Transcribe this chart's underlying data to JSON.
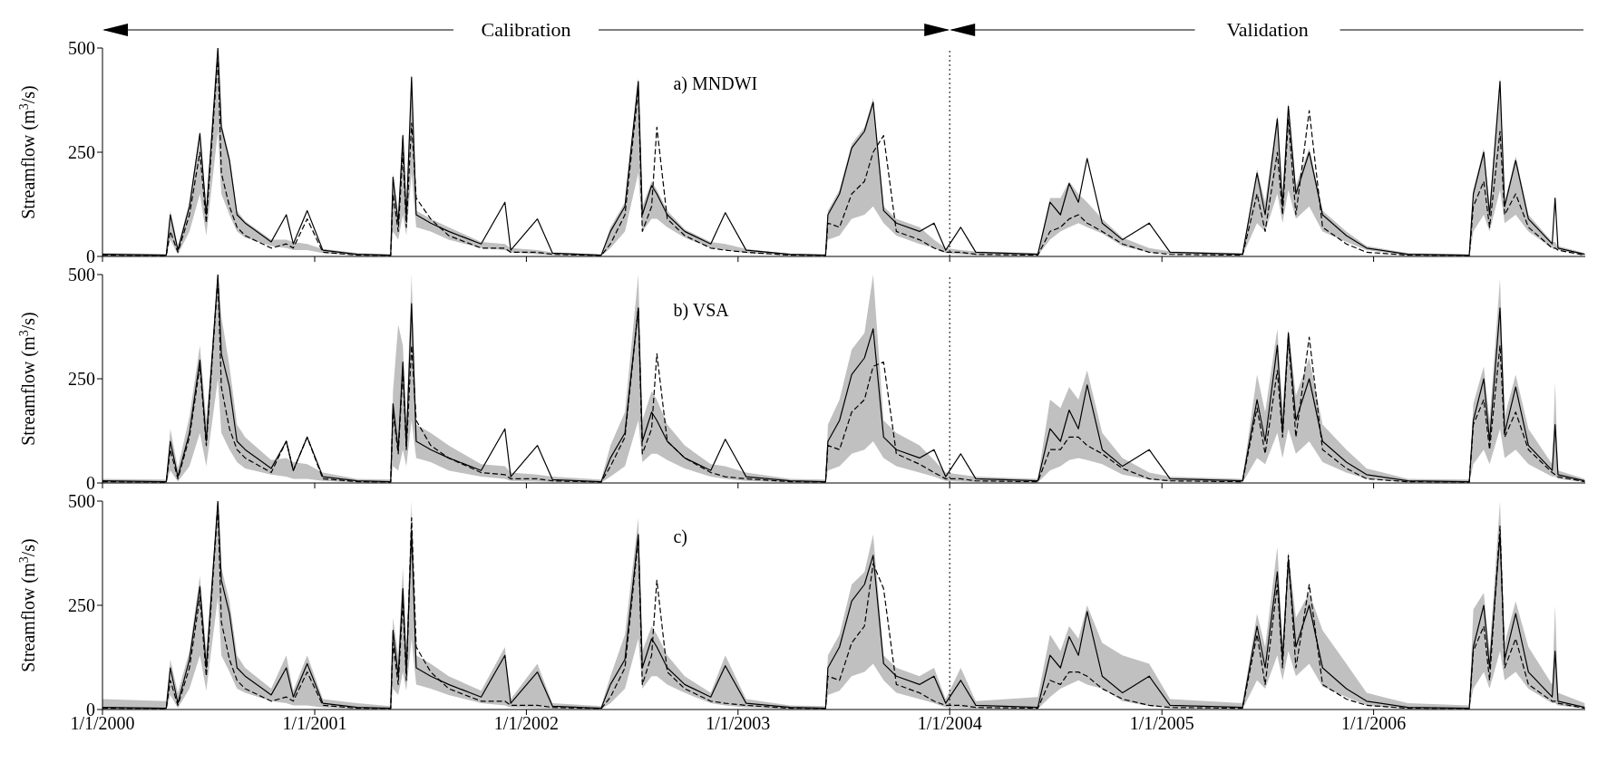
{
  "chart_data": [
    {
      "type": "line",
      "title": "a) MNDWI",
      "ylabel": "Streamflow (m$^{3}$/s)",
      "annotations": [
        "Calibration",
        "Validation"
      ],
      "tick_labels": "y",
      "xlim": [
        "2000-01-01",
        "2007-01-01"
      ],
      "xticks": [
        {
          "value": "2000-01-01",
          "label": null
        },
        {
          "value": "2001-01-01",
          "label": null
        },
        {
          "value": "2002-01-01",
          "label": null
        },
        {
          "value": "2003-01-01",
          "label": null
        },
        {
          "value": "2004-01-01",
          "label": null
        },
        {
          "value": "2005-01-01",
          "label": null
        },
        {
          "value": "2006-01-01",
          "label": null
        }
      ],
      "ylim": [
        0,
        500
      ],
      "yticks": [
        0,
        250,
        500
      ],
      "marker": "none",
      "ref_lines": [
        {
          "axis": "x",
          "value": "2004-01-01",
          "line_style": "dotted",
          "color": "#000000"
        }
      ],
      "x": [
        "2000-01-01",
        "2000-04-20",
        "2000-04-27",
        "2000-05-10",
        "2000-05-30",
        "2000-06-17",
        "2000-06-28",
        "2000-07-18",
        "2000-07-24",
        "2000-08-07",
        "2000-08-20",
        "2000-09-03",
        "2000-10-18",
        "2000-11-13",
        "2000-11-25",
        "2000-12-19",
        "2001-01-15",
        "2001-03-15",
        "2001-05-12",
        "2001-05-16",
        "2001-05-25",
        "2001-06-02",
        "2001-06-08",
        "2001-06-17",
        "2001-06-25",
        "2001-07-20",
        "2001-08-20",
        "2001-10-15",
        "2001-11-25",
        "2001-12-05",
        "2002-01-20",
        "2002-02-15",
        "2002-05-10",
        "2002-05-26",
        "2002-06-20",
        "2002-07-13",
        "2002-07-20",
        "2002-08-05",
        "2002-08-14",
        "2002-09-01",
        "2002-10-01",
        "2002-11-15",
        "2002-12-10",
        "2003-01-15",
        "2003-04-01",
        "2003-06-01",
        "2003-06-05",
        "2003-06-25",
        "2003-07-16",
        "2003-08-07",
        "2003-08-22",
        "2003-09-09",
        "2003-10-01",
        "2003-11-10",
        "2003-12-05",
        "2003-12-25",
        "2004-01-20",
        "2004-02-15",
        "2004-06-01",
        "2004-06-22",
        "2004-07-10",
        "2004-07-25",
        "2004-08-10",
        "2004-08-25",
        "2004-09-20",
        "2004-10-25",
        "2004-12-10",
        "2005-01-15",
        "2005-05-20",
        "2005-06-14",
        "2005-06-28",
        "2005-07-19",
        "2005-07-28",
        "2005-08-07",
        "2005-08-20",
        "2005-09-12",
        "2005-10-05",
        "2005-11-15",
        "2005-12-20",
        "2006-03-01",
        "2006-06-15",
        "2006-06-22",
        "2006-07-10",
        "2006-07-20",
        "2006-08-07",
        "2006-08-15",
        "2006-09-03",
        "2006-09-25",
        "2006-11-05",
        "2006-11-10",
        "2006-11-15",
        "2006-12-31"
      ],
      "series": [
        {
          "color": "#000000",
          "line_style": "solid",
          "values": [
            5,
            3,
            100,
            15,
            120,
            295,
            100,
            500,
            310,
            230,
            100,
            80,
            35,
            100,
            30,
            110,
            15,
            5,
            3,
            190,
            80,
            290,
            90,
            430,
            100,
            80,
            60,
            30,
            130,
            15,
            90,
            8,
            3,
            60,
            120,
            420,
            100,
            170,
            150,
            100,
            60,
            30,
            105,
            15,
            5,
            3,
            100,
            150,
            260,
            300,
            370,
            110,
            80,
            60,
            80,
            15,
            70,
            10,
            5,
            130,
            100,
            175,
            130,
            235,
            80,
            40,
            80,
            10,
            5,
            200,
            100,
            330,
            120,
            360,
            150,
            250,
            100,
            50,
            20,
            5,
            3,
            150,
            250,
            100,
            420,
            120,
            230,
            90,
            30,
            140,
            20,
            5
          ]
        },
        {
          "color": "#000000",
          "line_style": "dashed",
          "values": [
            3,
            2,
            60,
            10,
            100,
            250,
            80,
            480,
            200,
            120,
            70,
            50,
            20,
            30,
            20,
            90,
            10,
            3,
            2,
            150,
            60,
            250,
            70,
            320,
            140,
            90,
            50,
            20,
            20,
            10,
            10,
            5,
            2,
            30,
            100,
            400,
            60,
            120,
            310,
            90,
            50,
            20,
            15,
            10,
            3,
            2,
            80,
            70,
            150,
            180,
            250,
            290,
            60,
            40,
            20,
            10,
            10,
            5,
            3,
            60,
            70,
            90,
            100,
            80,
            60,
            30,
            10,
            5,
            3,
            150,
            60,
            250,
            100,
            330,
            100,
            350,
            70,
            30,
            10,
            3,
            2,
            120,
            180,
            70,
            300,
            100,
            150,
            70,
            20,
            20,
            15,
            3
          ],
          "lower": [
            0,
            0,
            40,
            5,
            60,
            150,
            50,
            300,
            150,
            100,
            60,
            45,
            25,
            20,
            15,
            15,
            8,
            2,
            1,
            60,
            40,
            100,
            50,
            200,
            70,
            60,
            40,
            20,
            15,
            10,
            5,
            3,
            1,
            20,
            60,
            200,
            60,
            90,
            90,
            70,
            45,
            20,
            15,
            8,
            2,
            1,
            40,
            50,
            90,
            100,
            120,
            80,
            50,
            30,
            20,
            8,
            5,
            3,
            2,
            40,
            60,
            70,
            80,
            70,
            55,
            25,
            10,
            5,
            2,
            80,
            60,
            150,
            80,
            160,
            90,
            120,
            60,
            35,
            15,
            2,
            1,
            60,
            100,
            60,
            160,
            80,
            100,
            60,
            20,
            20,
            15,
            3
          ],
          "upper": [
            8,
            6,
            110,
            25,
            130,
            300,
            120,
            500,
            320,
            240,
            110,
            85,
            40,
            40,
            35,
            30,
            18,
            8,
            5,
            200,
            100,
            300,
            110,
            440,
            110,
            90,
            70,
            35,
            30,
            20,
            15,
            10,
            5,
            70,
            130,
            430,
            120,
            180,
            160,
            110,
            65,
            35,
            30,
            18,
            6,
            5,
            110,
            160,
            270,
            310,
            380,
            120,
            90,
            70,
            40,
            20,
            15,
            12,
            8,
            140,
            140,
            180,
            150,
            130,
            90,
            45,
            20,
            12,
            8,
            210,
            130,
            340,
            140,
            370,
            170,
            260,
            110,
            60,
            25,
            8,
            5,
            160,
            260,
            120,
            430,
            130,
            240,
            100,
            35,
            35,
            25,
            8
          ]
        }
      ]
    },
    {
      "type": "line",
      "title": "b) VSA",
      "ylabel": "Streamflow (m$^{3}$/s)",
      "tick_labels": "y",
      "xlim": [
        "2000-01-01",
        "2007-01-01"
      ],
      "xticks": [
        {
          "value": "2000-01-01",
          "label": null
        },
        {
          "value": "2001-01-01",
          "label": null
        },
        {
          "value": "2002-01-01",
          "label": null
        },
        {
          "value": "2003-01-01",
          "label": null
        },
        {
          "value": "2004-01-01",
          "label": null
        },
        {
          "value": "2005-01-01",
          "label": null
        },
        {
          "value": "2006-01-01",
          "label": null
        }
      ],
      "ylim": [
        0,
        500
      ],
      "yticks": [
        0,
        250,
        500
      ],
      "marker": "none",
      "ref_lines": [
        {
          "axis": "x",
          "value": "2004-01-01",
          "line_style": "dotted",
          "color": "#000000"
        }
      ],
      "x": [
        "2000-01-01",
        "2000-04-20",
        "2000-04-27",
        "2000-05-10",
        "2000-05-30",
        "2000-06-17",
        "2000-06-28",
        "2000-07-18",
        "2000-07-24",
        "2000-08-07",
        "2000-08-20",
        "2000-09-03",
        "2000-10-18",
        "2000-11-13",
        "2000-11-25",
        "2000-12-19",
        "2001-01-15",
        "2001-03-15",
        "2001-05-12",
        "2001-05-16",
        "2001-05-25",
        "2001-06-02",
        "2001-06-08",
        "2001-06-17",
        "2001-06-25",
        "2001-07-20",
        "2001-08-20",
        "2001-10-15",
        "2001-11-25",
        "2001-12-05",
        "2002-01-20",
        "2002-02-15",
        "2002-05-10",
        "2002-05-26",
        "2002-06-20",
        "2002-07-13",
        "2002-07-20",
        "2002-08-05",
        "2002-08-14",
        "2002-09-01",
        "2002-10-01",
        "2002-11-15",
        "2002-12-10",
        "2003-01-15",
        "2003-04-01",
        "2003-06-01",
        "2003-06-05",
        "2003-06-25",
        "2003-07-16",
        "2003-08-07",
        "2003-08-22",
        "2003-09-09",
        "2003-10-01",
        "2003-11-10",
        "2003-12-05",
        "2003-12-25",
        "2004-01-20",
        "2004-02-15",
        "2004-06-01",
        "2004-06-22",
        "2004-07-10",
        "2004-07-25",
        "2004-08-10",
        "2004-08-25",
        "2004-09-20",
        "2004-10-25",
        "2004-12-10",
        "2005-01-15",
        "2005-05-20",
        "2005-06-14",
        "2005-06-28",
        "2005-07-19",
        "2005-07-28",
        "2005-08-07",
        "2005-08-20",
        "2005-09-12",
        "2005-10-05",
        "2005-11-15",
        "2005-12-20",
        "2006-03-01",
        "2006-06-15",
        "2006-06-22",
        "2006-07-10",
        "2006-07-20",
        "2006-08-07",
        "2006-08-15",
        "2006-09-03",
        "2006-09-25",
        "2006-11-05",
        "2006-11-10",
        "2006-11-15",
        "2006-12-31"
      ],
      "series": [
        {
          "color": "#000000",
          "line_style": "solid",
          "values": [
            5,
            3,
            100,
            15,
            120,
            295,
            100,
            500,
            310,
            230,
            100,
            80,
            35,
            100,
            30,
            110,
            15,
            5,
            3,
            190,
            80,
            290,
            90,
            430,
            100,
            80,
            60,
            30,
            130,
            15,
            90,
            8,
            3,
            60,
            120,
            420,
            100,
            170,
            150,
            100,
            60,
            30,
            105,
            15,
            5,
            3,
            100,
            150,
            260,
            300,
            370,
            110,
            80,
            60,
            80,
            15,
            70,
            10,
            5,
            130,
            100,
            175,
            130,
            235,
            80,
            40,
            80,
            10,
            5,
            200,
            100,
            330,
            120,
            360,
            150,
            250,
            100,
            50,
            20,
            5,
            3,
            150,
            250,
            100,
            420,
            120,
            230,
            90,
            30,
            140,
            20,
            5
          ]
        },
        {
          "color": "#000000",
          "line_style": "dashed",
          "values": [
            3,
            2,
            80,
            10,
            110,
            280,
            90,
            490,
            230,
            130,
            80,
            60,
            25,
            100,
            30,
            110,
            10,
            3,
            2,
            170,
            70,
            270,
            80,
            330,
            150,
            90,
            60,
            25,
            20,
            10,
            10,
            5,
            2,
            40,
            110,
            420,
            70,
            130,
            310,
            100,
            60,
            25,
            15,
            10,
            3,
            2,
            90,
            80,
            170,
            200,
            280,
            290,
            70,
            45,
            25,
            10,
            10,
            5,
            3,
            80,
            80,
            110,
            110,
            90,
            70,
            35,
            10,
            5,
            3,
            180,
            70,
            270,
            110,
            350,
            110,
            350,
            80,
            35,
            10,
            3,
            2,
            140,
            200,
            80,
            330,
            110,
            170,
            80,
            25,
            20,
            15,
            3
          ],
          "lower": [
            0,
            0,
            30,
            3,
            40,
            120,
            40,
            250,
            120,
            80,
            50,
            35,
            20,
            15,
            10,
            10,
            5,
            1,
            1,
            40,
            30,
            80,
            40,
            150,
            60,
            50,
            30,
            15,
            10,
            5,
            3,
            2,
            1,
            15,
            40,
            150,
            50,
            70,
            70,
            55,
            35,
            15,
            10,
            5,
            1,
            1,
            30,
            40,
            70,
            80,
            100,
            60,
            40,
            25,
            15,
            5,
            3,
            2,
            1,
            30,
            40,
            55,
            60,
            55,
            45,
            20,
            8,
            3,
            1,
            60,
            45,
            120,
            60,
            130,
            70,
            100,
            50,
            25,
            10,
            1,
            1,
            45,
            80,
            45,
            130,
            60,
            80,
            45,
            15,
            15,
            10,
            2
          ],
          "upper": [
            10,
            8,
            130,
            35,
            160,
            330,
            150,
            500,
            400,
            280,
            140,
            110,
            55,
            60,
            50,
            45,
            25,
            10,
            8,
            220,
            380,
            330,
            150,
            500,
            140,
            120,
            90,
            45,
            40,
            25,
            20,
            15,
            8,
            90,
            170,
            500,
            150,
            220,
            200,
            140,
            90,
            45,
            40,
            25,
            10,
            8,
            140,
            200,
            320,
            360,
            500,
            150,
            120,
            90,
            55,
            25,
            20,
            15,
            10,
            200,
            180,
            230,
            200,
            270,
            120,
            60,
            25,
            15,
            10,
            260,
            170,
            370,
            180,
            370,
            210,
            300,
            140,
            80,
            35,
            10,
            8,
            190,
            280,
            150,
            490,
            160,
            260,
            130,
            45,
            240,
            30,
            10
          ]
        }
      ]
    },
    {
      "type": "line",
      "title": "c)",
      "ylabel": "Streamflow (m$^{3}$/s)",
      "xlim": [
        "2000-01-01",
        "2007-01-01"
      ],
      "xticks": [
        {
          "value": "2000-01-01",
          "label": "1/1/2000"
        },
        {
          "value": "2001-01-01",
          "label": "1/1/2001"
        },
        {
          "value": "2002-01-01",
          "label": "1/1/2002"
        },
        {
          "value": "2003-01-01",
          "label": "1/1/2003"
        },
        {
          "value": "2004-01-01",
          "label": "1/1/2004"
        },
        {
          "value": "2005-01-01",
          "label": "1/1/2005"
        },
        {
          "value": "2006-01-01",
          "label": "1/1/2006"
        }
      ],
      "ylim": [
        0,
        500
      ],
      "yticks": [
        0,
        250,
        500
      ],
      "marker": "none",
      "ref_lines": [
        {
          "axis": "x",
          "value": "2004-01-01",
          "line_style": "dotted",
          "color": "#000000"
        }
      ],
      "x": [
        "2000-01-01",
        "2000-04-20",
        "2000-04-27",
        "2000-05-10",
        "2000-05-30",
        "2000-06-17",
        "2000-06-28",
        "2000-07-18",
        "2000-07-24",
        "2000-08-07",
        "2000-08-20",
        "2000-09-03",
        "2000-10-18",
        "2000-11-13",
        "2000-11-25",
        "2000-12-19",
        "2001-01-15",
        "2001-03-15",
        "2001-05-12",
        "2001-05-16",
        "2001-05-25",
        "2001-06-02",
        "2001-06-08",
        "2001-06-17",
        "2001-06-25",
        "2001-07-20",
        "2001-08-20",
        "2001-10-15",
        "2001-11-25",
        "2001-12-05",
        "2002-01-20",
        "2002-02-15",
        "2002-05-10",
        "2002-05-26",
        "2002-06-20",
        "2002-07-13",
        "2002-07-20",
        "2002-08-05",
        "2002-08-14",
        "2002-09-01",
        "2002-10-01",
        "2002-11-15",
        "2002-12-10",
        "2003-01-15",
        "2003-04-01",
        "2003-06-01",
        "2003-06-05",
        "2003-06-25",
        "2003-07-16",
        "2003-08-07",
        "2003-08-22",
        "2003-09-09",
        "2003-10-01",
        "2003-11-10",
        "2003-12-05",
        "2003-12-25",
        "2004-01-20",
        "2004-02-15",
        "2004-06-01",
        "2004-06-22",
        "2004-07-10",
        "2004-07-25",
        "2004-08-10",
        "2004-08-25",
        "2004-09-20",
        "2004-10-25",
        "2004-12-10",
        "2005-01-15",
        "2005-05-20",
        "2005-06-14",
        "2005-06-28",
        "2005-07-19",
        "2005-07-28",
        "2005-08-07",
        "2005-08-20",
        "2005-09-12",
        "2005-10-05",
        "2005-11-15",
        "2005-12-20",
        "2006-03-01",
        "2006-06-15",
        "2006-06-22",
        "2006-07-10",
        "2006-07-20",
        "2006-08-07",
        "2006-08-15",
        "2006-09-03",
        "2006-09-25",
        "2006-11-05",
        "2006-11-10",
        "2006-11-15",
        "2006-12-31"
      ],
      "series": [
        {
          "color": "#000000",
          "line_style": "solid",
          "values": [
            5,
            3,
            100,
            15,
            120,
            295,
            100,
            500,
            310,
            230,
            100,
            80,
            35,
            100,
            30,
            110,
            15,
            5,
            3,
            190,
            80,
            290,
            90,
            430,
            100,
            80,
            60,
            30,
            130,
            15,
            90,
            8,
            3,
            60,
            120,
            420,
            100,
            170,
            150,
            100,
            60,
            30,
            105,
            15,
            5,
            3,
            100,
            150,
            260,
            300,
            370,
            110,
            80,
            60,
            80,
            15,
            70,
            10,
            5,
            130,
            100,
            175,
            130,
            235,
            80,
            40,
            80,
            10,
            5,
            200,
            100,
            330,
            120,
            360,
            150,
            250,
            100,
            50,
            20,
            5,
            3,
            150,
            250,
            100,
            420,
            120,
            230,
            90,
            30,
            140,
            20,
            5
          ]
        },
        {
          "color": "#000000",
          "line_style": "dashed",
          "values": [
            3,
            2,
            70,
            10,
            100,
            270,
            80,
            490,
            210,
            120,
            70,
            50,
            20,
            30,
            20,
            90,
            10,
            3,
            2,
            160,
            60,
            260,
            70,
            460,
            150,
            90,
            50,
            20,
            20,
            10,
            10,
            5,
            2,
            30,
            100,
            410,
            60,
            130,
            310,
            90,
            50,
            20,
            15,
            10,
            3,
            2,
            80,
            70,
            160,
            200,
            350,
            290,
            60,
            40,
            20,
            10,
            10,
            5,
            3,
            70,
            60,
            90,
            90,
            80,
            50,
            25,
            10,
            5,
            3,
            180,
            60,
            300,
            100,
            370,
            100,
            300,
            60,
            25,
            10,
            3,
            2,
            140,
            200,
            70,
            440,
            100,
            170,
            60,
            20,
            20,
            15,
            3
          ],
          "lower": [
            0,
            0,
            35,
            3,
            50,
            130,
            45,
            270,
            130,
            90,
            50,
            40,
            20,
            15,
            10,
            10,
            5,
            1,
            1,
            50,
            35,
            90,
            45,
            170,
            60,
            50,
            35,
            15,
            10,
            5,
            3,
            2,
            1,
            15,
            50,
            170,
            50,
            80,
            80,
            60,
            40,
            15,
            10,
            5,
            1,
            1,
            35,
            45,
            80,
            90,
            110,
            70,
            40,
            25,
            15,
            5,
            3,
            2,
            1,
            30,
            50,
            60,
            70,
            60,
            50,
            20,
            8,
            3,
            1,
            70,
            50,
            130,
            70,
            140,
            80,
            110,
            55,
            30,
            10,
            1,
            1,
            50,
            90,
            50,
            140,
            70,
            90,
            50,
            15,
            15,
            10,
            2
          ],
          "upper": [
            25,
            20,
            120,
            40,
            140,
            320,
            140,
            500,
            340,
            260,
            130,
            100,
            50,
            130,
            45,
            130,
            25,
            15,
            8,
            220,
            130,
            340,
            140,
            500,
            130,
            110,
            80,
            45,
            150,
            25,
            110,
            15,
            8,
            80,
            180,
            460,
            140,
            200,
            180,
            130,
            80,
            40,
            130,
            25,
            10,
            8,
            130,
            180,
            300,
            330,
            420,
            130,
            100,
            80,
            100,
            25,
            100,
            20,
            30,
            180,
            140,
            200,
            170,
            250,
            160,
            130,
            110,
            25,
            15,
            230,
            150,
            390,
            160,
            380,
            220,
            280,
            190,
            110,
            40,
            15,
            10,
            240,
            280,
            140,
            500,
            160,
            260,
            150,
            60,
            250,
            40,
            15
          ]
        }
      ]
    }
  ]
}
